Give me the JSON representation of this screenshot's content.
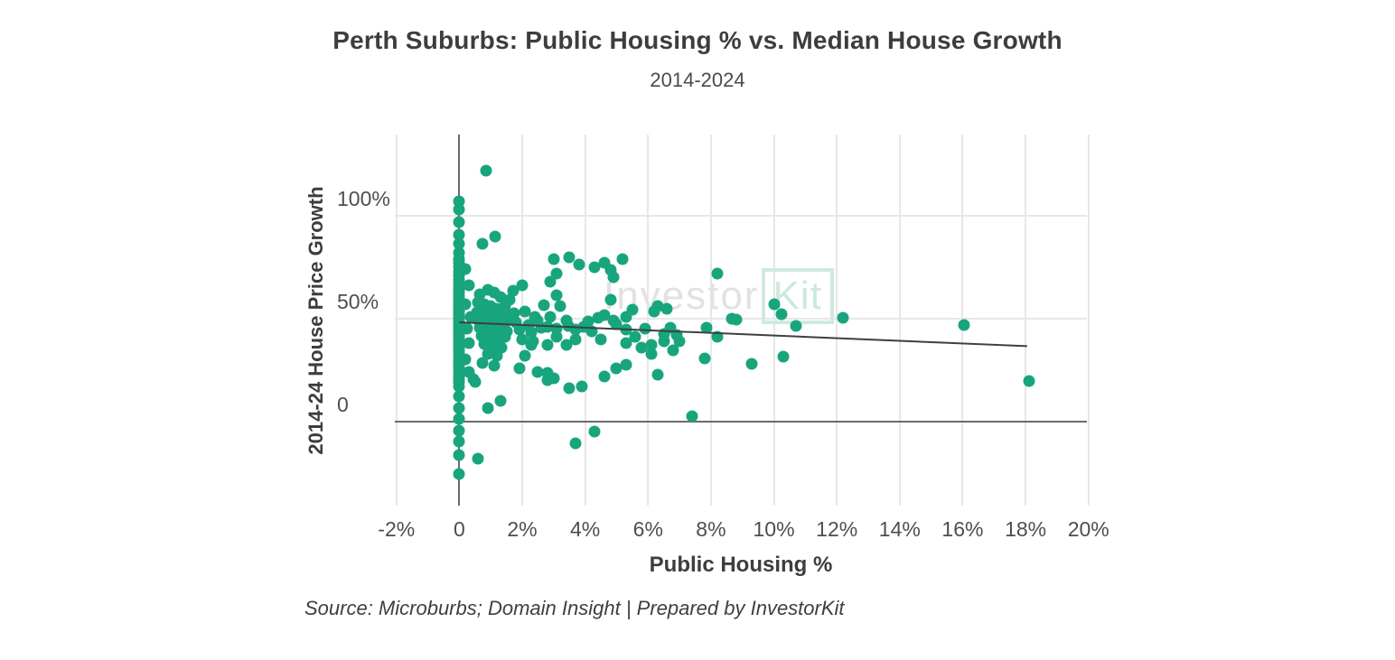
{
  "title": "Perth Suburbs: Public Housing % vs. Median House Growth",
  "subtitle": "2014-2024",
  "source_note": "Source: Microburbs; Domain Insight | Prepared by InvestorKit",
  "watermark": {
    "part1": "Investor",
    "part2": "Kit"
  },
  "colors": {
    "dot": "#18a57d",
    "trend_line": "#3f3f3f",
    "gridline": "#e7e7e7",
    "zero_line": "#6a6a6a",
    "watermark_gray": "#e2e2e2",
    "watermark_green": "#cde9dc"
  },
  "chart_data": {
    "type": "scatter",
    "title": "Perth Suburbs: Public Housing % vs. Median House Growth",
    "subtitle": "2014-2024",
    "xlabel": "Public Housing %",
    "ylabel": "2014-24 House Price Growth",
    "xlim": [
      -2.05,
      19.95
    ],
    "ylim": [
      -41,
      139.6
    ],
    "grid": true,
    "legend": "none",
    "x_ticks": [
      {
        "v": -2,
        "label": "-2%"
      },
      {
        "v": 0,
        "label": "0"
      },
      {
        "v": 2,
        "label": "2%"
      },
      {
        "v": 4,
        "label": "4%"
      },
      {
        "v": 6,
        "label": "6%"
      },
      {
        "v": 8,
        "label": "8%"
      },
      {
        "v": 10,
        "label": "10%"
      },
      {
        "v": 12,
        "label": "12%"
      },
      {
        "v": 14,
        "label": "14%"
      },
      {
        "v": 16,
        "label": "16%"
      },
      {
        "v": 18,
        "label": "18%"
      },
      {
        "v": 20,
        "label": "20%"
      }
    ],
    "y_ticks": [
      {
        "v": 0,
        "label": "0"
      },
      {
        "v": 50,
        "label": "50%"
      },
      {
        "v": 100,
        "label": "100%"
      }
    ],
    "trend_line": {
      "x1": 0,
      "y1": 48.2,
      "x2": 18.05,
      "y2": 36.6
    },
    "points": [
      [
        0,
        107
      ],
      [
        0,
        103
      ],
      [
        0,
        97
      ],
      [
        0,
        91
      ],
      [
        0,
        86.5
      ],
      [
        0,
        82
      ],
      [
        0,
        79
      ],
      [
        0,
        77
      ],
      [
        0,
        75
      ],
      [
        0,
        73
      ],
      [
        0,
        71
      ],
      [
        0,
        69
      ],
      [
        0,
        67
      ],
      [
        0,
        65.5
      ],
      [
        0,
        64
      ],
      [
        0,
        62.5
      ],
      [
        0,
        61
      ],
      [
        0,
        59.5
      ],
      [
        0,
        58
      ],
      [
        0,
        57
      ],
      [
        0,
        56
      ],
      [
        0,
        55
      ],
      [
        0,
        54
      ],
      [
        0,
        53
      ],
      [
        0,
        52
      ],
      [
        0,
        51
      ],
      [
        0,
        50
      ],
      [
        0,
        49
      ],
      [
        0,
        48
      ],
      [
        0,
        47
      ],
      [
        0,
        46
      ],
      [
        0,
        45
      ],
      [
        0,
        44
      ],
      [
        0,
        43
      ],
      [
        0,
        42
      ],
      [
        0,
        41
      ],
      [
        0,
        40
      ],
      [
        0,
        38.5
      ],
      [
        0,
        37
      ],
      [
        0,
        35.5
      ],
      [
        0,
        34
      ],
      [
        0,
        32.5
      ],
      [
        0,
        31
      ],
      [
        0,
        29.5
      ],
      [
        0,
        28
      ],
      [
        0,
        26.5
      ],
      [
        0,
        25
      ],
      [
        0,
        23.5
      ],
      [
        0,
        22
      ],
      [
        0,
        20.5
      ],
      [
        0,
        19
      ],
      [
        0,
        17
      ],
      [
        0,
        12
      ],
      [
        0,
        6.5
      ],
      [
        0,
        1
      ],
      [
        0,
        -4.5
      ],
      [
        0,
        -10
      ],
      [
        0,
        -16.5
      ],
      [
        0,
        -25.5
      ],
      [
        0.2,
        74
      ],
      [
        0.3,
        66
      ],
      [
        0.2,
        57
      ],
      [
        0.35,
        51
      ],
      [
        0.25,
        45
      ],
      [
        0.3,
        38
      ],
      [
        0.2,
        30
      ],
      [
        0.3,
        24
      ],
      [
        0.45,
        20.5
      ],
      [
        0.85,
        122
      ],
      [
        1.15,
        90
      ],
      [
        0.75,
        86.5
      ],
      [
        0.9,
        64
      ],
      [
        1.1,
        62.5
      ],
      [
        0.65,
        62
      ],
      [
        1.3,
        60.5
      ],
      [
        0.6,
        58
      ],
      [
        0.8,
        57
      ],
      [
        1,
        56
      ],
      [
        1.2,
        55
      ],
      [
        1.45,
        56
      ],
      [
        0.55,
        53
      ],
      [
        0.7,
        52
      ],
      [
        0.9,
        51.5
      ],
      [
        1.1,
        51
      ],
      [
        1.3,
        52
      ],
      [
        1.5,
        52.5
      ],
      [
        0.6,
        49.5
      ],
      [
        0.75,
        48.5
      ],
      [
        0.95,
        48
      ],
      [
        1.15,
        47.5
      ],
      [
        1.35,
        48
      ],
      [
        1.55,
        49
      ],
      [
        0.65,
        45.5
      ],
      [
        0.85,
        44.5
      ],
      [
        1.05,
        44
      ],
      [
        1.25,
        43.5
      ],
      [
        1.5,
        44
      ],
      [
        0.7,
        41.5
      ],
      [
        0.95,
        40.5
      ],
      [
        1.2,
        40
      ],
      [
        1.45,
        41
      ],
      [
        0.8,
        37.5
      ],
      [
        1.05,
        36.5
      ],
      [
        1.35,
        36
      ],
      [
        0.9,
        33
      ],
      [
        1.2,
        32
      ],
      [
        0.75,
        28.5
      ],
      [
        1.1,
        27
      ],
      [
        1.3,
        10
      ],
      [
        0.9,
        6.5
      ],
      [
        0.5,
        19
      ],
      [
        0.6,
        -18
      ],
      [
        1.7,
        63.5
      ],
      [
        2,
        66
      ],
      [
        1.6,
        59
      ],
      [
        1.75,
        52.5
      ],
      [
        2.1,
        53.5
      ],
      [
        2.4,
        51
      ],
      [
        1.8,
        48
      ],
      [
        2.2,
        47
      ],
      [
        2.5,
        49
      ],
      [
        1.9,
        44.5
      ],
      [
        2.3,
        43.5
      ],
      [
        2.6,
        45.5
      ],
      [
        2,
        40
      ],
      [
        2.35,
        39
      ],
      [
        1.9,
        26
      ],
      [
        2.1,
        32
      ],
      [
        2.3,
        37
      ],
      [
        2.5,
        24
      ],
      [
        3,
        79
      ],
      [
        3.5,
        80
      ],
      [
        3.8,
        76.5
      ],
      [
        3.1,
        72
      ],
      [
        2.9,
        68
      ],
      [
        2.7,
        56.5
      ],
      [
        3.2,
        56
      ],
      [
        2.9,
        51
      ],
      [
        3.4,
        49
      ],
      [
        3.1,
        61.5
      ],
      [
        2.8,
        46
      ],
      [
        3.1,
        45
      ],
      [
        3.45,
        46.5
      ],
      [
        3.7,
        44.5
      ],
      [
        3.95,
        46
      ],
      [
        3.1,
        41
      ],
      [
        3.4,
        37
      ],
      [
        2.8,
        37
      ],
      [
        3.7,
        40
      ],
      [
        2.8,
        23.5
      ],
      [
        3,
        21
      ],
      [
        2.8,
        20
      ],
      [
        3.5,
        16
      ],
      [
        3.9,
        17
      ],
      [
        3.7,
        -10.5
      ],
      [
        4.3,
        75
      ],
      [
        4.6,
        77
      ],
      [
        4.8,
        73.5
      ],
      [
        5.2,
        79
      ],
      [
        4.9,
        70
      ],
      [
        4.8,
        59
      ],
      [
        4.4,
        50.5
      ],
      [
        4.9,
        49
      ],
      [
        5.3,
        51
      ],
      [
        5.5,
        54.5
      ],
      [
        4.6,
        51.5
      ],
      [
        4.2,
        44
      ],
      [
        4.5,
        40
      ],
      [
        5,
        47.5
      ],
      [
        5.3,
        44.5
      ],
      [
        5.6,
        41
      ],
      [
        5.3,
        38
      ],
      [
        5.8,
        36
      ],
      [
        5.9,
        45
      ],
      [
        5,
        26
      ],
      [
        5.3,
        27.5
      ],
      [
        4.6,
        22
      ],
      [
        4.3,
        -5
      ],
      [
        4.1,
        48.5
      ],
      [
        6.3,
        56
      ],
      [
        6.6,
        55
      ],
      [
        6.2,
        53.5
      ],
      [
        6.5,
        42.5
      ],
      [
        6.7,
        45.5
      ],
      [
        6.9,
        42
      ],
      [
        7,
        39
      ],
      [
        6.5,
        39
      ],
      [
        6.8,
        34.5
      ],
      [
        6.1,
        37
      ],
      [
        6.1,
        33
      ],
      [
        6.3,
        22.5
      ],
      [
        7.4,
        2.5
      ],
      [
        7.85,
        45.5
      ],
      [
        7.8,
        30.5
      ],
      [
        8.2,
        72
      ],
      [
        8.2,
        41
      ],
      [
        8.65,
        50
      ],
      [
        8.8,
        49.5
      ],
      [
        9.3,
        28
      ],
      [
        10,
        57
      ],
      [
        10.25,
        52
      ],
      [
        10.7,
        46.5
      ],
      [
        10.3,
        31.5
      ],
      [
        12.2,
        50.5
      ],
      [
        16.05,
        47
      ],
      [
        18.1,
        19.5
      ]
    ]
  }
}
